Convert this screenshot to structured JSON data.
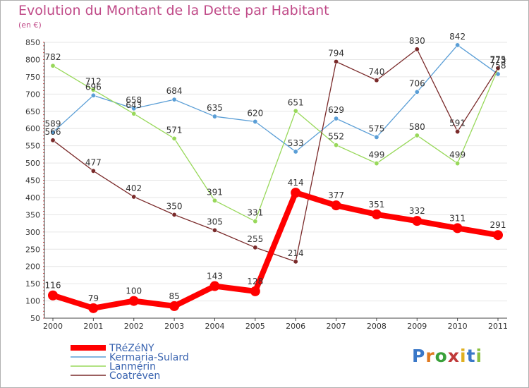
{
  "title": "Evolution du Montant de la Dette par Habitant",
  "unit": "(en €)",
  "logo": {
    "text": "Proxiti",
    "colors": [
      "#3a78c8",
      "#e07a20",
      "#3aa03a",
      "#c03a3a",
      "#e0b020",
      "#3a78c8",
      "#8ac040"
    ]
  },
  "chart_data": {
    "type": "line",
    "title": "Evolution du Montant de la Dette par Habitant",
    "ylabel": "(en €)",
    "xlabel": "",
    "x": [
      "2000",
      "2001",
      "2002",
      "2003",
      "2004",
      "2005",
      "2006",
      "2007",
      "2008",
      "2009",
      "2010",
      "2011"
    ],
    "yticks": [
      50,
      100,
      150,
      200,
      250,
      300,
      350,
      400,
      450,
      500,
      550,
      600,
      650,
      700,
      750,
      800,
      850
    ],
    "ylim": [
      50,
      850
    ],
    "grid": "horizontal",
    "legend_position": "bottom-left",
    "series": [
      {
        "name": "TRéZéNY",
        "color": "#ff0000",
        "values": [
          116,
          79,
          100,
          85,
          143,
          128,
          414,
          377,
          351,
          332,
          311,
          291
        ]
      },
      {
        "name": "Kermaria-Sulard",
        "color": "#5a9ed6",
        "values": [
          589,
          696,
          658,
          684,
          635,
          620,
          533,
          629,
          575,
          706,
          842,
          758
        ]
      },
      {
        "name": "Lanmérin",
        "color": "#98d85a",
        "values": [
          782,
          712,
          643,
          571,
          391,
          331,
          651,
          552,
          499,
          580,
          499,
          773
        ]
      },
      {
        "name": "Coatréven",
        "color": "#7a2a2a",
        "values": [
          566,
          477,
          402,
          350,
          305,
          255,
          214,
          794,
          740,
          830,
          591,
          775
        ]
      }
    ]
  }
}
